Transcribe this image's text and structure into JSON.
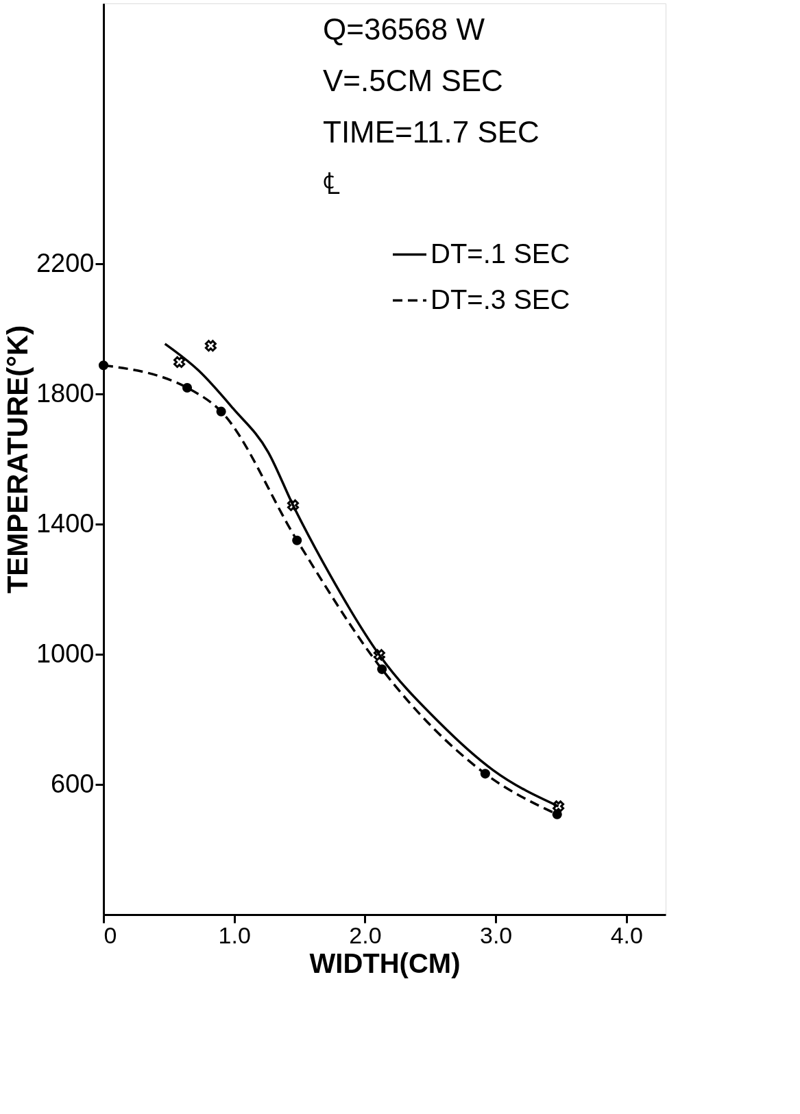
{
  "chart_data": {
    "type": "line",
    "xlabel": "WIDTH(CM)",
    "ylabel": "TEMPERATURE(°K)",
    "annotations": [
      "Q=36568 W",
      "V=.5CM SEC",
      "TIME=11.7 SEC",
      "℄"
    ],
    "xlim": [
      0,
      4.3
    ],
    "ylim": [
      200,
      3000
    ],
    "xticks": [
      0,
      {
        "value": 1,
        "label": "1.0"
      },
      {
        "value": 2,
        "label": "2.0"
      },
      {
        "value": 3,
        "label": "3.0"
      },
      {
        "value": 4,
        "label": "4.0"
      }
    ],
    "yticks": [
      600,
      1000,
      1400,
      1800,
      2200
    ],
    "grid": false,
    "legend": "top right",
    "series": [
      {
        "name": "DT=.1 SEC",
        "type": "line",
        "line_style": "solid",
        "color": "#000000",
        "x": [
          0.47,
          0.73,
          0.99,
          1.26,
          1.45,
          1.73,
          2.11,
          2.57,
          2.98,
          3.48
        ],
        "values": [
          1954,
          1871,
          1756,
          1621,
          1458,
          1246,
          998,
          790,
          644,
          533
        ]
      },
      {
        "type": "scatter",
        "marker": "cross",
        "color": "#000000",
        "x": [
          0.58,
          0.82,
          1.45,
          2.11,
          3.48
        ],
        "values": [
          1898,
          1948,
          1458,
          998,
          533
        ]
      },
      {
        "name": "DT=.3 SEC",
        "line_style": "dashed",
        "marker": "circle",
        "color": "#000000",
        "x": [
          0,
          0.64,
          0.9,
          1.48,
          2.13,
          2.92,
          3.47
        ],
        "values": [
          1888,
          1819,
          1746,
          1350,
          954,
          633,
          508
        ]
      }
    ]
  }
}
